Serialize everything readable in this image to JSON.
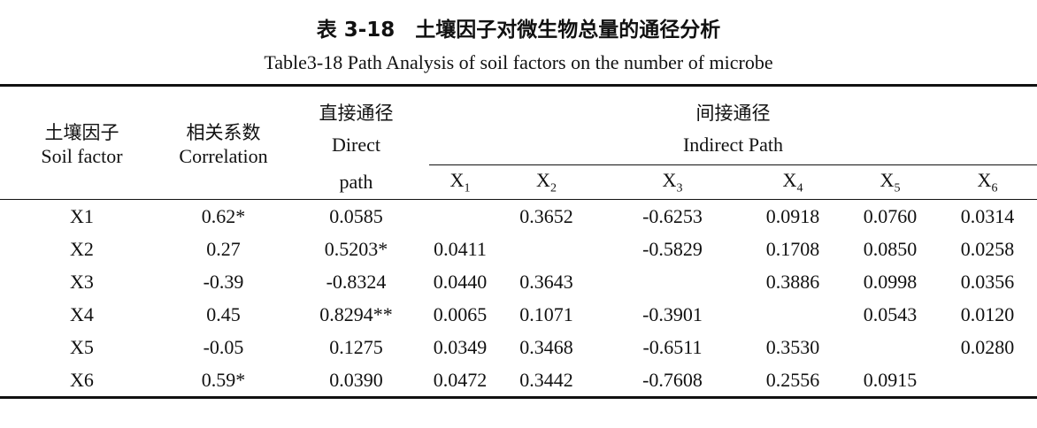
{
  "title": "表 3-18　土壤因子对微生物总量的通径分析",
  "subtitle": "Table3-18 Path Analysis of soil factors on the number of microbe",
  "table": {
    "header": {
      "soil_factor": [
        "土壤因子",
        "Soil factor"
      ],
      "correlation": [
        "相关系数",
        "Correlation"
      ],
      "direct": [
        "直接通径",
        "Direct",
        "path"
      ],
      "indirect": [
        "间接通径",
        "Indirect Path"
      ],
      "columns": [
        {
          "base": "X",
          "sub": "1"
        },
        {
          "base": "X",
          "sub": "2"
        },
        {
          "base": "X",
          "sub": "3"
        },
        {
          "base": "X",
          "sub": "4"
        },
        {
          "base": "X",
          "sub": "5"
        },
        {
          "base": "X",
          "sub": "6"
        }
      ]
    },
    "rows": [
      [
        "X1",
        "0.62*",
        "0.0585",
        null,
        "0.3652",
        "-0.6253",
        "0.0918",
        "0.0760",
        "0.0314"
      ],
      [
        "X2",
        "0.27",
        "0.5203*",
        "0.0411",
        null,
        "-0.5829",
        "0.1708",
        "0.0850",
        "0.0258"
      ],
      [
        "X3",
        "-0.39",
        "-0.8324",
        "0.0440",
        "0.3643",
        null,
        "0.3886",
        "0.0998",
        "0.0356"
      ],
      [
        "X4",
        "0.45",
        "0.8294**",
        "0.0065",
        "0.1071",
        "-0.3901",
        null,
        "0.0543",
        "0.0120"
      ],
      [
        "X5",
        "-0.05",
        "0.1275",
        "0.0349",
        "0.3468",
        "-0.6511",
        "0.3530",
        null,
        "0.0280"
      ],
      [
        "X6",
        "0.59*",
        "0.0390",
        "0.0472",
        "0.3442",
        "-0.7608",
        "0.2556",
        "0.0915",
        null
      ]
    ]
  }
}
